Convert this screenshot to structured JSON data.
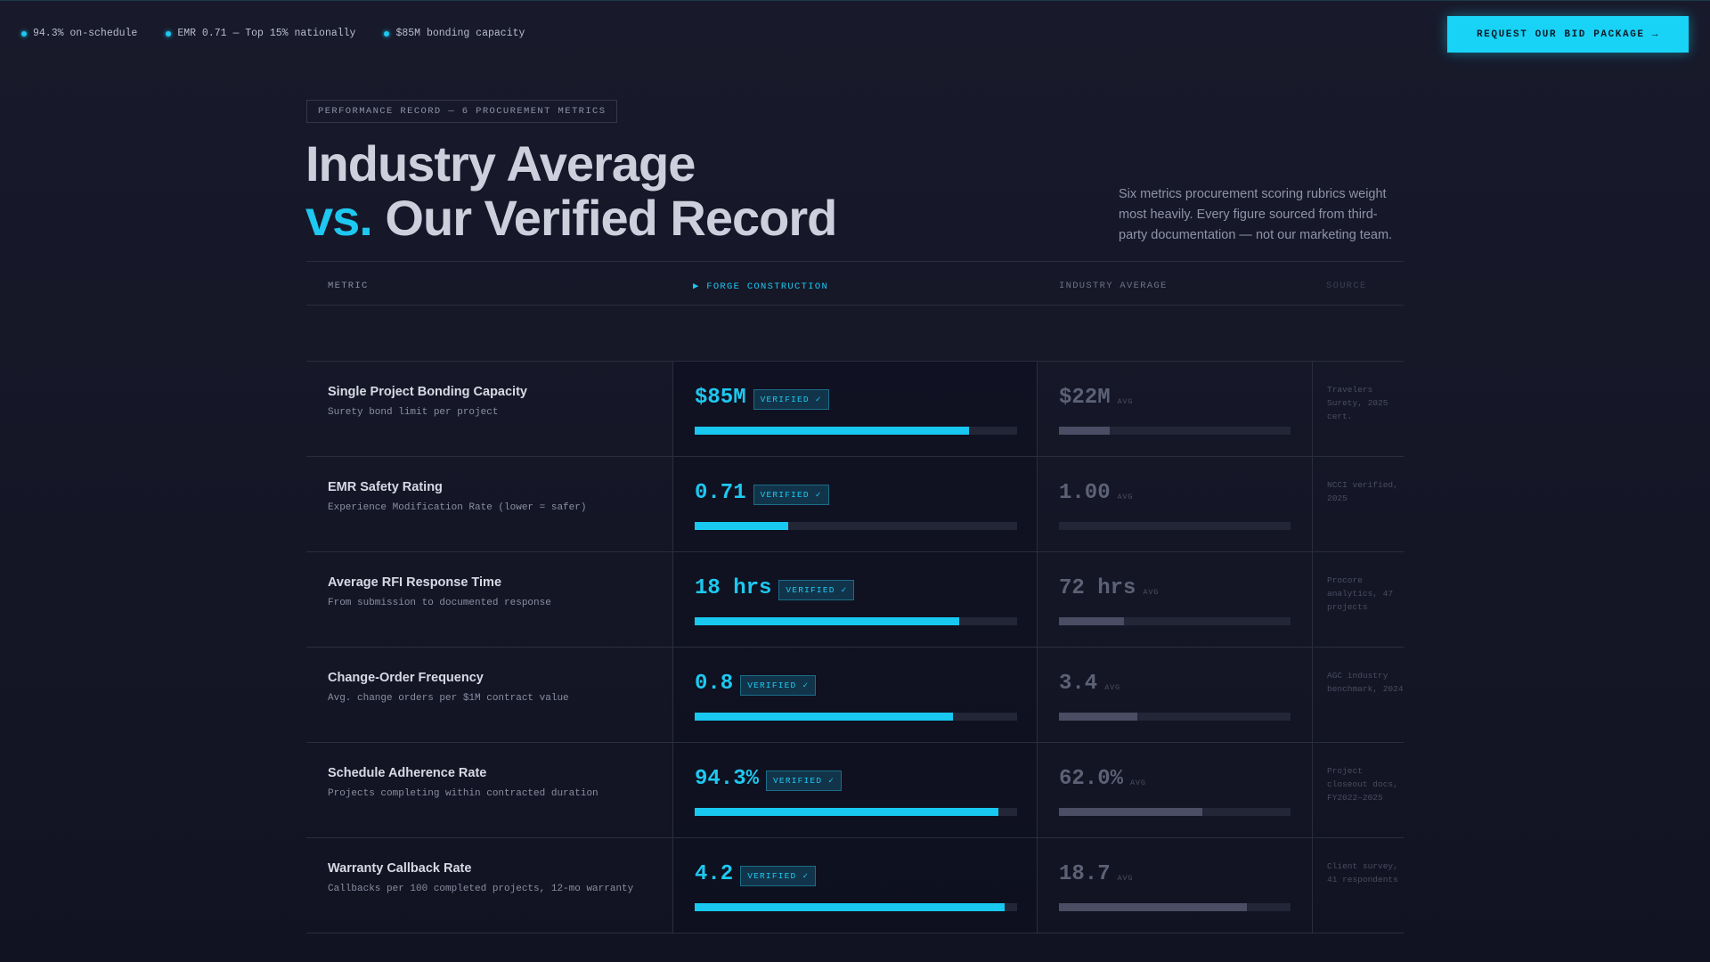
{
  "topbar": {
    "stats": [
      "94.3% on-schedule",
      "EMR 0.71 — Top 15% nationally",
      "$85M bonding capacity"
    ],
    "cta_label": "REQUEST OUR BID PACKAGE →"
  },
  "header": {
    "eyebrow": "PERFORMANCE RECORD — 6 PROCUREMENT METRICS",
    "headline_line1": "Industry Average",
    "headline_accent": "vs.",
    "headline_line2": "Our Verified Record",
    "intro": "Six metrics procurement scoring rubrics weight most heavily. Every figure sourced from third-party documentation — not our marketing team."
  },
  "table": {
    "columns": {
      "metric": "METRIC",
      "forge": "▶ FORGE CONSTRUCTION",
      "industry": "INDUSTRY AVERAGE",
      "source": "SOURCE"
    },
    "verified_label": "VERIFIED ✓",
    "avg_label": "AVG",
    "rows": [
      {
        "name": "Single Project Bonding Capacity",
        "desc": "Surety bond limit per project",
        "forge": "$85M",
        "forge_pct": 85,
        "industry": "$22M",
        "industry_pct": 22,
        "source": "Travelers Surety, 2025 cert."
      },
      {
        "name": "EMR Safety Rating",
        "desc": "Experience Modification Rate (lower = safer)",
        "forge": "0.71",
        "forge_pct": 29,
        "industry": "1.00",
        "industry_pct": 0,
        "source": "NCCI verified, 2025"
      },
      {
        "name": "Average RFI Response Time",
        "desc": "From submission to documented response",
        "forge": "18 hrs",
        "forge_pct": 82,
        "industry": "72 hrs",
        "industry_pct": 28,
        "source": "Procore analytics, 47 projects"
      },
      {
        "name": "Change-Order Frequency",
        "desc": "Avg. change orders per $1M contract value",
        "forge": "0.8",
        "forge_pct": 80,
        "industry": "3.4",
        "industry_pct": 34,
        "source": "AGC industry benchmark, 2024"
      },
      {
        "name": "Schedule Adherence Rate",
        "desc": "Projects completing within contracted duration",
        "forge": "94.3%",
        "forge_pct": 94.3,
        "industry": "62.0%",
        "industry_pct": 62,
        "source": "Project closeout docs, FY2022–2025"
      },
      {
        "name": "Warranty Callback Rate",
        "desc": "Callbacks per 100 completed projects, 12-mo warranty",
        "forge": "4.2",
        "forge_pct": 96,
        "industry": "18.7",
        "industry_pct": 81,
        "source": "Client survey, 41 respondents"
      }
    ]
  }
}
